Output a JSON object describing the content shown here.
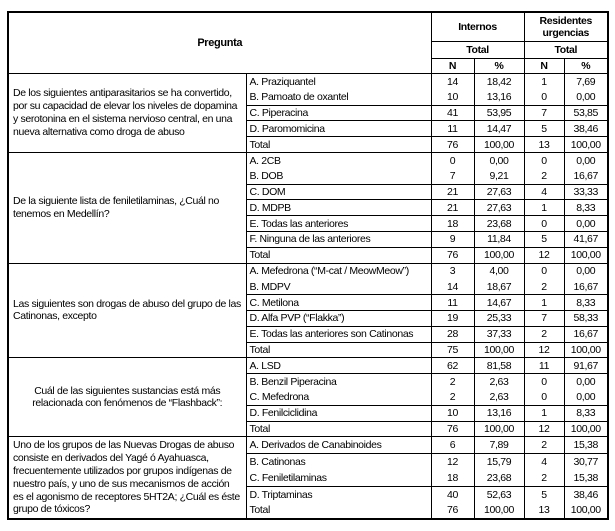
{
  "header": {
    "pregunta": "Pregunta",
    "groups": [
      {
        "title": "Internos",
        "total": "Total",
        "n": "N",
        "pct": "%"
      },
      {
        "title": "Residentes urgencias",
        "total": "Total",
        "n": "N",
        "pct": "%"
      }
    ]
  },
  "blocks": [
    {
      "question": "De los siguientes antiparasitarios se ha convertido, por su capacidad de elevar los niveles de dopamina y serotonina en el sistema nervioso central, en una nueva alternativa como droga de abuso",
      "align": "left",
      "rows": [
        {
          "option": "A. Praziquantel",
          "n1": "14",
          "p1": "18,42",
          "n2": "1",
          "p2": "7,69",
          "divider": true
        },
        {
          "option": "B. Pamoato de oxantel",
          "n1": "10",
          "p1": "13,16",
          "n2": "0",
          "p2": "0,00",
          "divider": false
        },
        {
          "option": "C. Piperacina",
          "n1": "41",
          "p1": "53,95",
          "n2": "7",
          "p2": "53,85",
          "divider": true
        },
        {
          "option": "D. Paromomicina",
          "n1": "11",
          "p1": "14,47",
          "n2": "5",
          "p2": "38,46",
          "divider": true
        },
        {
          "option": "Total",
          "n1": "76",
          "p1": "100,00",
          "n2": "13",
          "p2": "100,00",
          "divider": true
        }
      ]
    },
    {
      "question": "De la siguiente lista de feniletilaminas, ¿Cuál no tenemos en Medellín?",
      "align": "left",
      "rows": [
        {
          "option": "A. 2CB",
          "n1": "0",
          "p1": "0,00",
          "n2": "0",
          "p2": "0,00",
          "divider": true
        },
        {
          "option": "B. DOB",
          "n1": "7",
          "p1": "9,21",
          "n2": "2",
          "p2": "16,67",
          "divider": false
        },
        {
          "option": "C. DOM",
          "n1": "21",
          "p1": "27,63",
          "n2": "4",
          "p2": "33,33",
          "divider": true
        },
        {
          "option": "D. MDPB",
          "n1": "21",
          "p1": "27,63",
          "n2": "1",
          "p2": "8,33",
          "divider": true
        },
        {
          "option": "E. Todas las anteriores",
          "n1": "18",
          "p1": "23,68",
          "n2": "0",
          "p2": "0,00",
          "divider": true
        },
        {
          "option": "F. Ninguna de las anteriores",
          "n1": "9",
          "p1": "11,84",
          "n2": "5",
          "p2": "41,67",
          "divider": true
        },
        {
          "option": "Total",
          "n1": "76",
          "p1": "100,00",
          "n2": "12",
          "p2": "100,00",
          "divider": true
        }
      ]
    },
    {
      "question": "Las siguientes son drogas de abuso del grupo de las Catinonas, excepto",
      "align": "left",
      "rows": [
        {
          "option": "A. Mefedrona (“M-cat / MeowMeow”)",
          "n1": "3",
          "p1": "4,00",
          "n2": "0",
          "p2": "0,00",
          "divider": true
        },
        {
          "option": "B. MDPV",
          "n1": "14",
          "p1": "18,67",
          "n2": "2",
          "p2": "16,67",
          "divider": false
        },
        {
          "option": "C. Metilona",
          "n1": "11",
          "p1": "14,67",
          "n2": "1",
          "p2": "8,33",
          "divider": true
        },
        {
          "option": "D. Alfa PVP (“Flakka”)",
          "n1": "19",
          "p1": "25,33",
          "n2": "7",
          "p2": "58,33",
          "divider": true
        },
        {
          "option": "E. Todas las anteriores son Catinonas",
          "n1": "28",
          "p1": "37,33",
          "n2": "2",
          "p2": "16,67",
          "divider": true
        },
        {
          "option": "Total",
          "n1": "75",
          "p1": "100,00",
          "n2": "12",
          "p2": "100,00",
          "divider": true
        }
      ]
    },
    {
      "question": "Cuál de las siguientes sustancias está más relacionada con fenómenos de “Flashback”:",
      "align": "center",
      "rows": [
        {
          "option": "A. LSD",
          "n1": "62",
          "p1": "81,58",
          "n2": "11",
          "p2": "91,67",
          "divider": true
        },
        {
          "option": "B. Benzil Piperacina",
          "n1": "2",
          "p1": "2,63",
          "n2": "0",
          "p2": "0,00",
          "divider": true
        },
        {
          "option": "C. Mefedrona",
          "n1": "2",
          "p1": "2,63",
          "n2": "0",
          "p2": "0,00",
          "divider": false
        },
        {
          "option": "D. Fenilciclidina",
          "n1": "10",
          "p1": "13,16",
          "n2": "1",
          "p2": "8,33",
          "divider": true
        },
        {
          "option": "Total",
          "n1": "76",
          "p1": "100,00",
          "n2": "12",
          "p2": "100,00",
          "divider": true
        }
      ]
    },
    {
      "question": "Uno de los grupos de las Nuevas Drogas de abuso consiste en derivados del Yagé ó Ayahuasca, frecuentemente utilizados por grupos indígenas de nuestro país, y uno de sus mecanismos de acción es el agonismo de receptores 5HT2A; ¿Cuál es éste grupo de tóxicos?",
      "align": "left",
      "rows": [
        {
          "option": "A. Derivados de Canabinoides",
          "n1": "6",
          "p1": "7,89",
          "n2": "2",
          "p2": "15,38",
          "divider": true
        },
        {
          "option": "B. Catinonas",
          "n1": "12",
          "p1": "15,79",
          "n2": "4",
          "p2": "30,77",
          "divider": true
        },
        {
          "option": "C. Feniletilaminas",
          "n1": "18",
          "p1": "23,68",
          "n2": "2",
          "p2": "15,38",
          "divider": false
        },
        {
          "option": "D. Triptaminas",
          "n1": "40",
          "p1": "52,63",
          "n2": "5",
          "p2": "38,46",
          "divider": true
        },
        {
          "option": "Total",
          "n1": "76",
          "p1": "100,00",
          "n2": "13",
          "p2": "100,00",
          "divider": false
        }
      ]
    }
  ]
}
